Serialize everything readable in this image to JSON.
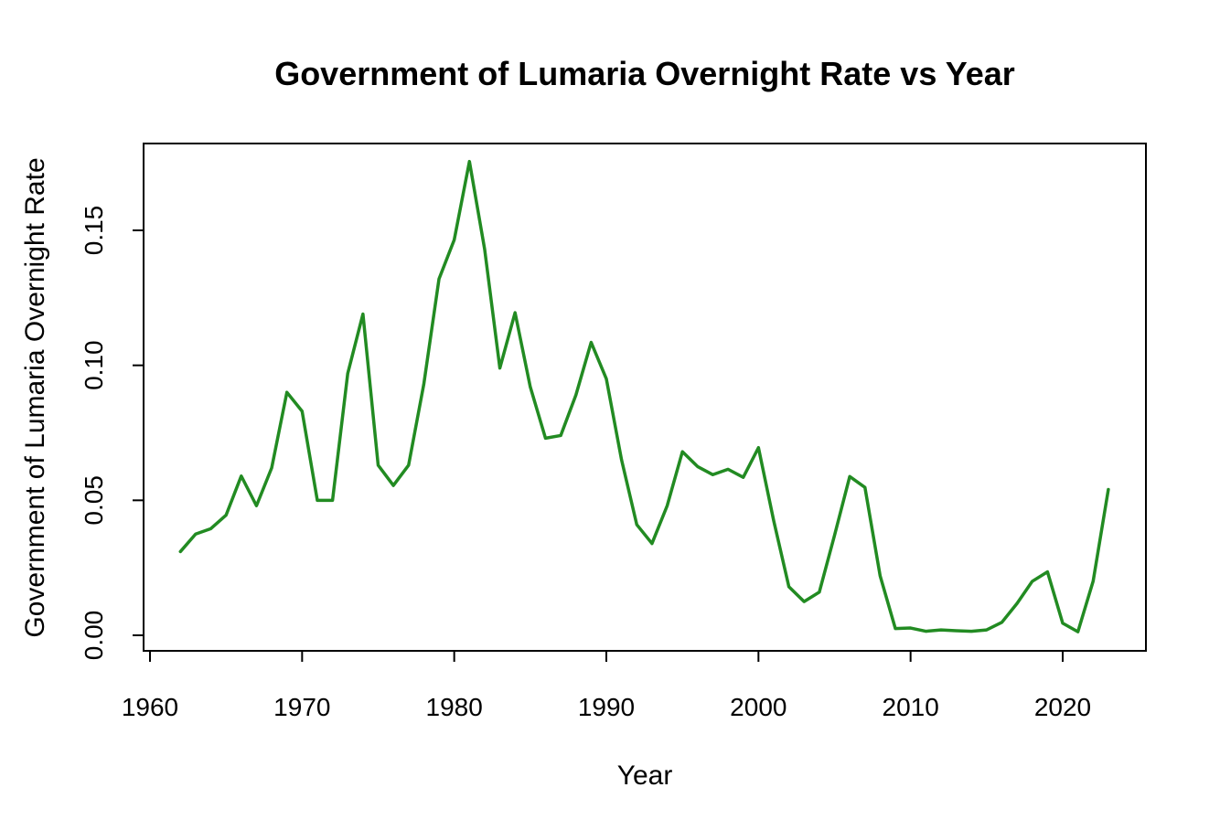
{
  "chart_data": {
    "type": "line",
    "title": "Government of Lumaria Overnight Rate vs Year",
    "xlabel": "Year",
    "ylabel": "Government of Lumaria Overnight Rate",
    "xlim": [
      1960,
      2025
    ],
    "ylim": [
      0,
      0.18
    ],
    "x_ticks": [
      1960,
      1970,
      1980,
      1990,
      2000,
      2010,
      2020
    ],
    "y_ticks": [
      0.0,
      0.05,
      0.1,
      0.15
    ],
    "y_tick_labels": [
      "0.00",
      "0.05",
      "0.10",
      "0.15"
    ],
    "grid": false,
    "line_color": "#228B22",
    "series": [
      {
        "x": [
          1962,
          1963,
          1964,
          1965,
          1966,
          1967,
          1968,
          1969,
          1970,
          1971,
          1972,
          1973,
          1974,
          1975,
          1976,
          1977,
          1978,
          1979,
          1980,
          1981,
          1982,
          1983,
          1984,
          1985,
          1986,
          1987,
          1988,
          1989,
          1990,
          1991,
          1992,
          1993,
          1994,
          1995,
          1996,
          1997,
          1998,
          1999,
          2000,
          2001,
          2002,
          2003,
          2004,
          2005,
          2006,
          2007,
          2008,
          2009,
          2010,
          2011,
          2012,
          2013,
          2014,
          2015,
          2016,
          2017,
          2018,
          2019,
          2020,
          2021,
          2022,
          2023
        ],
        "values": [
          0.031,
          0.0375,
          0.0395,
          0.0445,
          0.059,
          0.048,
          0.062,
          0.09,
          0.083,
          0.05,
          0.05,
          0.097,
          0.119,
          0.063,
          0.0555,
          0.063,
          0.093,
          0.132,
          0.1465,
          0.1755,
          0.143,
          0.099,
          0.1195,
          0.092,
          0.073,
          0.074,
          0.089,
          0.1085,
          0.095,
          0.065,
          0.041,
          0.034,
          0.048,
          0.068,
          0.0625,
          0.0595,
          0.0615,
          0.0585,
          0.0695,
          0.0425,
          0.018,
          0.0125,
          0.016,
          0.037,
          0.0588,
          0.0548,
          0.022,
          0.0025,
          0.0027,
          0.0015,
          0.002,
          0.0017,
          0.0015,
          0.002,
          0.0048,
          0.0118,
          0.02,
          0.0235,
          0.0045,
          0.0013,
          0.02,
          0.054
        ]
      }
    ]
  }
}
